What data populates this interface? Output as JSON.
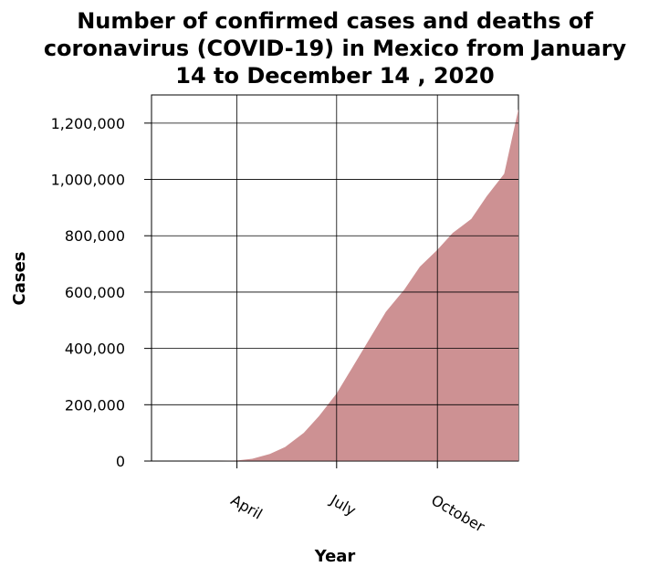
{
  "chart_data": {
    "type": "area",
    "title_lines": [
      "Number of confirmed cases and deaths of",
      "coronavirus (COVID-19) in Mexico from January",
      "14 to December 14 , 2020"
    ],
    "xlabel": "Year",
    "ylabel": "Cases",
    "xlim": [
      "2020-01-14",
      "2020-12-14"
    ],
    "ylim": [
      0,
      1300000
    ],
    "x_ticks": [
      {
        "date": "2020-04-01",
        "label": "April"
      },
      {
        "date": "2020-07-01",
        "label": "July"
      },
      {
        "date": "2020-10-01",
        "label": "October"
      }
    ],
    "y_ticks": [
      {
        "value": 0,
        "label": "0"
      },
      {
        "value": 200000,
        "label": "200,000"
      },
      {
        "value": 400000,
        "label": "400,000"
      },
      {
        "value": 600000,
        "label": "600,000"
      },
      {
        "value": 800000,
        "label": "800,000"
      },
      {
        "value": 1000000,
        "label": "1,000,000"
      },
      {
        "value": 1200000,
        "label": "1,200,000"
      }
    ],
    "grid": true,
    "fill_color": "#cd9193",
    "series": [
      {
        "x": [
          "2020-01-14",
          "2020-02-15",
          "2020-03-15",
          "2020-04-01",
          "2020-04-15",
          "2020-05-01",
          "2020-05-15",
          "2020-06-01",
          "2020-06-15",
          "2020-07-01",
          "2020-07-15",
          "2020-08-01",
          "2020-08-15",
          "2020-09-01",
          "2020-09-15",
          "2020-10-01",
          "2020-10-15",
          "2020-11-01",
          "2020-11-15",
          "2020-12-01",
          "2020-12-14"
        ],
        "y": [
          0,
          0,
          500,
          2000,
          8000,
          25000,
          50000,
          100000,
          160000,
          240000,
          330000,
          440000,
          530000,
          610000,
          690000,
          750000,
          810000,
          860000,
          940000,
          1020000,
          1250000
        ]
      }
    ]
  }
}
